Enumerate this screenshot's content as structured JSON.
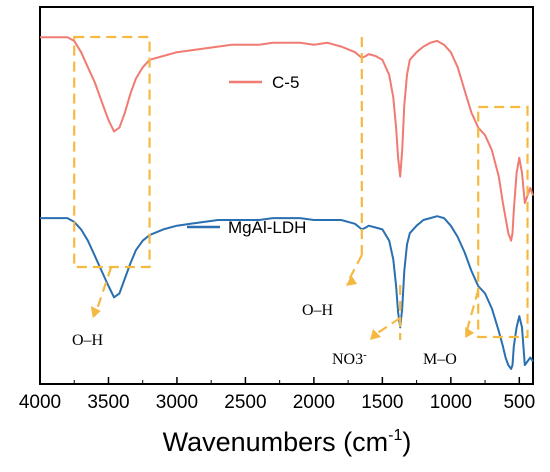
{
  "chart_data": {
    "type": "line",
    "xlabel": "Wavenumbers (cm",
    "xlabel_sup": "-1",
    "xlabel_close": ")",
    "ylabel": "",
    "xlim": [
      4000,
      400
    ],
    "x_reversed": true,
    "x_ticks": [
      "4000",
      "3500",
      "3000",
      "2500",
      "2000",
      "1500",
      "1000",
      "500"
    ],
    "y_ticks_visible": false,
    "grid": false,
    "legend_placement": "inline",
    "series": [
      {
        "name": "C-5",
        "color": "#f07b72",
        "x": [
          4000,
          3900,
          3800,
          3750,
          3700,
          3650,
          3600,
          3550,
          3500,
          3460,
          3420,
          3380,
          3340,
          3300,
          3250,
          3200,
          3100,
          3000,
          2900,
          2800,
          2700,
          2600,
          2500,
          2400,
          2300,
          2200,
          2100,
          2000,
          1900,
          1800,
          1700,
          1650,
          1620,
          1600,
          1550,
          1500,
          1450,
          1420,
          1400,
          1385,
          1370,
          1355,
          1340,
          1320,
          1300,
          1250,
          1200,
          1150,
          1100,
          1050,
          1000,
          950,
          900,
          850,
          800,
          750,
          700,
          650,
          620,
          600,
          580,
          560,
          550,
          540,
          520,
          500,
          480,
          460,
          440,
          420,
          400
        ],
        "values": [
          0.92,
          0.92,
          0.92,
          0.91,
          0.88,
          0.84,
          0.8,
          0.75,
          0.7,
          0.67,
          0.68,
          0.72,
          0.77,
          0.81,
          0.84,
          0.86,
          0.87,
          0.88,
          0.885,
          0.89,
          0.895,
          0.9,
          0.9,
          0.9,
          0.905,
          0.905,
          0.905,
          0.9,
          0.905,
          0.895,
          0.88,
          0.865,
          0.87,
          0.875,
          0.87,
          0.86,
          0.82,
          0.76,
          0.68,
          0.6,
          0.55,
          0.62,
          0.74,
          0.82,
          0.86,
          0.88,
          0.895,
          0.905,
          0.91,
          0.9,
          0.88,
          0.84,
          0.78,
          0.72,
          0.68,
          0.66,
          0.62,
          0.55,
          0.48,
          0.44,
          0.4,
          0.38,
          0.4,
          0.46,
          0.56,
          0.6,
          0.56,
          0.48,
          0.5,
          0.52,
          0.5
        ]
      },
      {
        "name": "MgAl-LDH",
        "color": "#2a6fb0",
        "x": [
          4000,
          3900,
          3800,
          3750,
          3700,
          3650,
          3600,
          3550,
          3500,
          3460,
          3420,
          3380,
          3340,
          3300,
          3250,
          3200,
          3100,
          3000,
          2900,
          2800,
          2700,
          2600,
          2500,
          2400,
          2300,
          2200,
          2100,
          2000,
          1900,
          1800,
          1700,
          1650,
          1620,
          1600,
          1550,
          1500,
          1450,
          1420,
          1400,
          1385,
          1370,
          1355,
          1340,
          1320,
          1300,
          1250,
          1200,
          1150,
          1100,
          1050,
          1000,
          950,
          900,
          850,
          800,
          750,
          700,
          650,
          620,
          600,
          580,
          560,
          550,
          540,
          520,
          500,
          480,
          460,
          440,
          420,
          400
        ],
        "values": [
          0.44,
          0.44,
          0.44,
          0.43,
          0.41,
          0.38,
          0.34,
          0.3,
          0.26,
          0.23,
          0.24,
          0.28,
          0.32,
          0.355,
          0.38,
          0.395,
          0.41,
          0.42,
          0.425,
          0.43,
          0.435,
          0.435,
          0.435,
          0.435,
          0.44,
          0.44,
          0.44,
          0.435,
          0.435,
          0.435,
          0.425,
          0.41,
          0.415,
          0.42,
          0.415,
          0.41,
          0.38,
          0.33,
          0.26,
          0.19,
          0.15,
          0.2,
          0.3,
          0.37,
          0.4,
          0.42,
          0.435,
          0.44,
          0.445,
          0.44,
          0.42,
          0.39,
          0.35,
          0.3,
          0.26,
          0.24,
          0.2,
          0.14,
          0.1,
          0.07,
          0.05,
          0.04,
          0.05,
          0.1,
          0.15,
          0.18,
          0.15,
          0.05,
          0.06,
          0.07,
          0.06
        ]
      }
    ],
    "annotations": [
      {
        "text": "O–H",
        "region": "3750-3200"
      },
      {
        "text": "O–H",
        "region": "1620"
      },
      {
        "text": "NO3",
        "sup": "-",
        "region": "1370"
      },
      {
        "text": "M–O",
        "region": "800-440"
      }
    ],
    "annotation_color": "#f5b942"
  }
}
